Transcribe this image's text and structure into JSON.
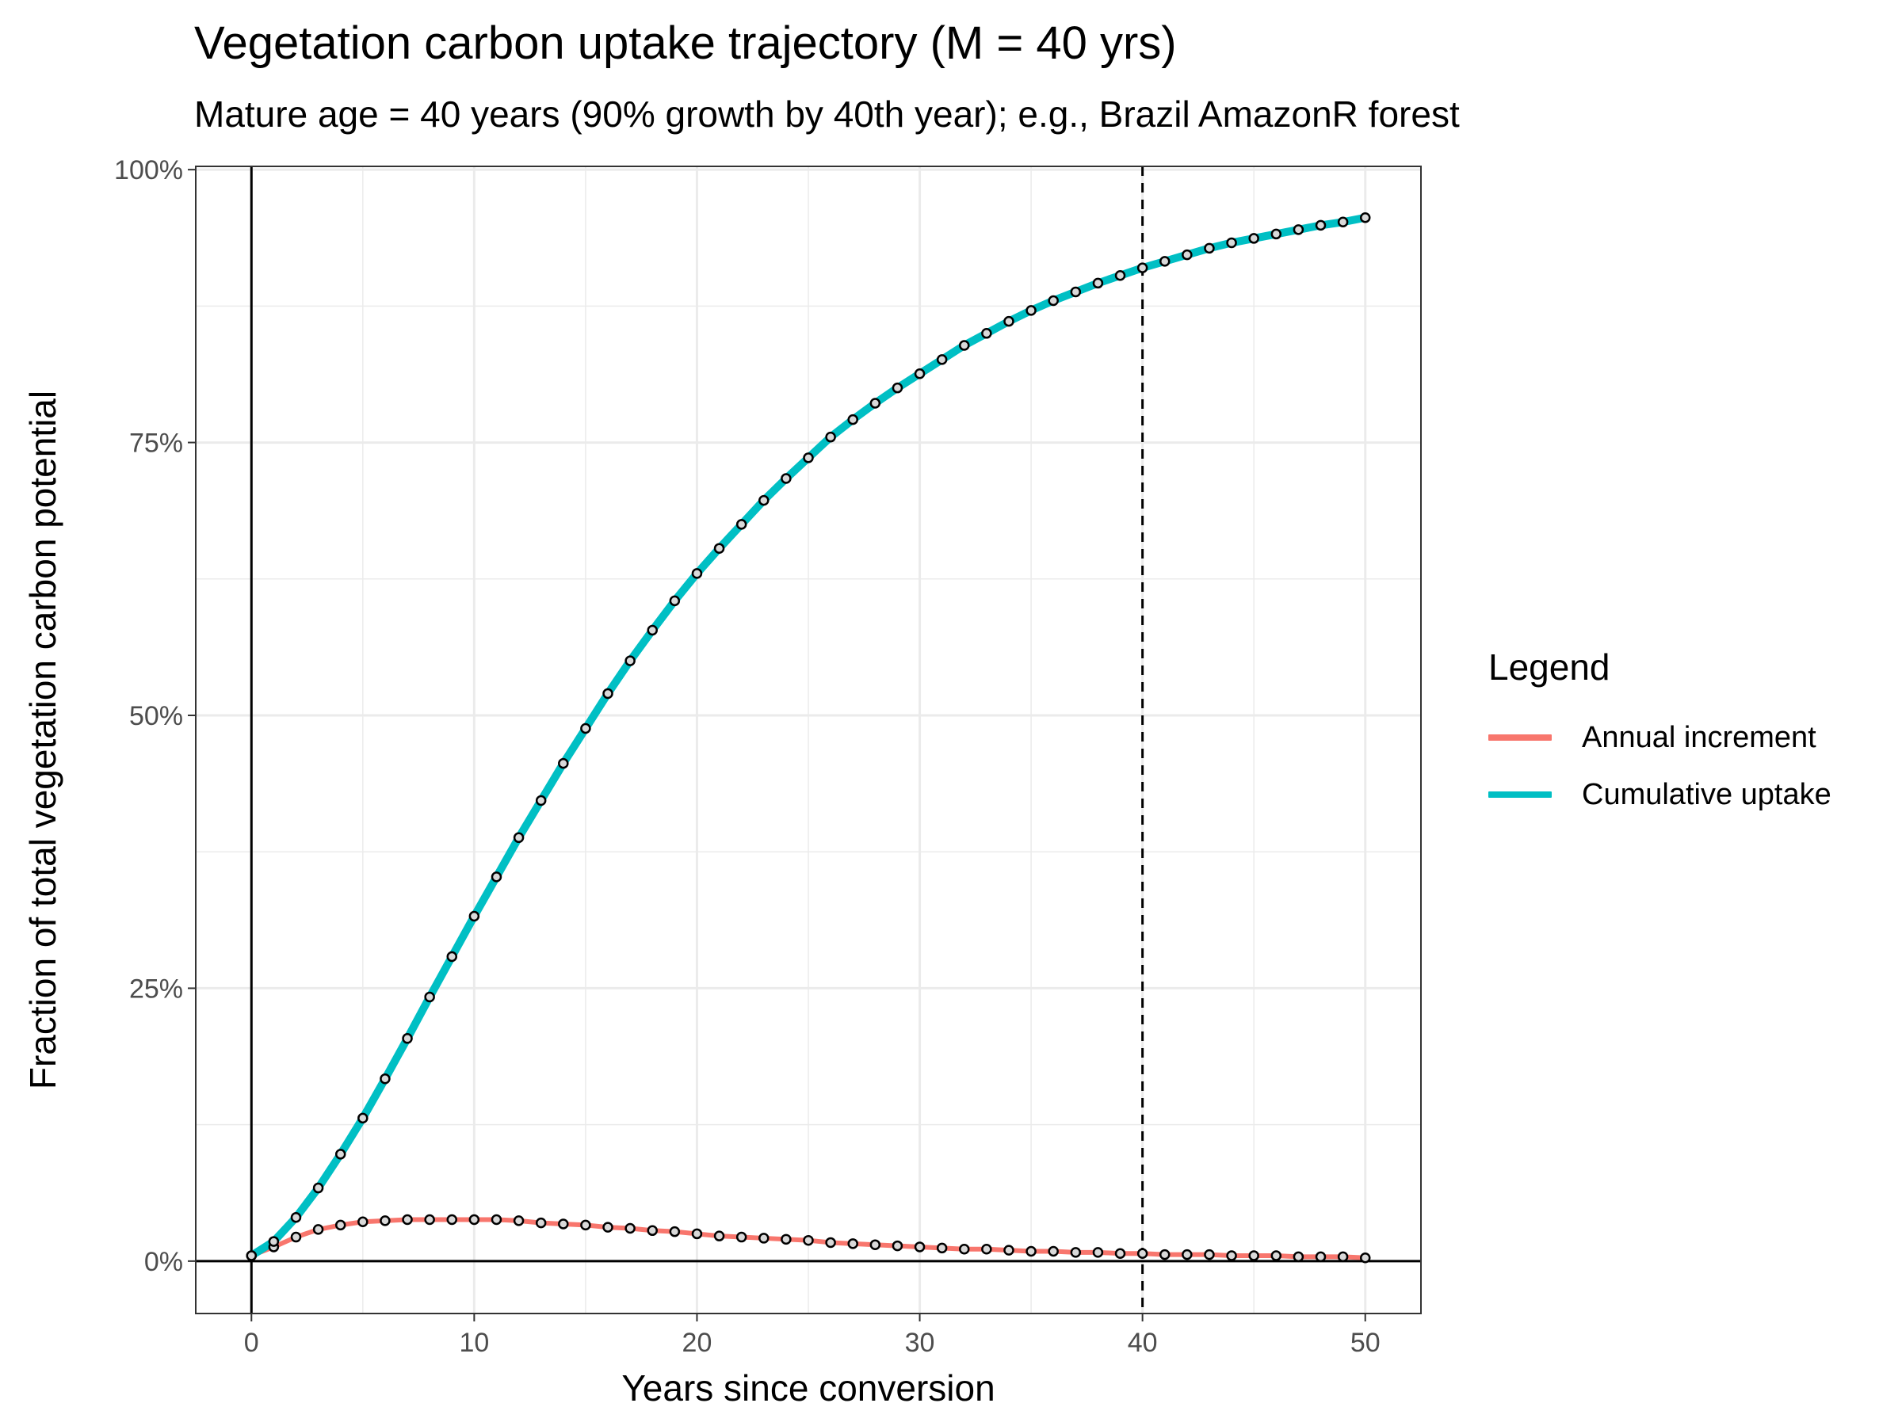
{
  "chart_data": {
    "type": "line",
    "title": "Vegetation carbon uptake trajectory (M = 40 yrs)",
    "subtitle": "Mature age = 40 years (90% growth by 40th year); e.g., Brazil AmazonR forest",
    "xlabel": "Years since conversion",
    "ylabel": "Fraction of total vegetation carbon potential",
    "xlim": [
      -2.5,
      52.5
    ],
    "ylim": [
      -0.048,
      1.003
    ],
    "x_ticks": [
      0,
      10,
      20,
      30,
      40,
      50
    ],
    "x_tick_labels": [
      "0",
      "10",
      "20",
      "30",
      "40",
      "50"
    ],
    "y_ticks": [
      0,
      0.25,
      0.5,
      0.75,
      1.0
    ],
    "y_tick_labels": [
      "0%",
      "25%",
      "50%",
      "75%",
      "100%"
    ],
    "grid": true,
    "reference_lines": {
      "vertical_dashed_x": 40,
      "vertical_solid_x": 0,
      "horizontal_solid_y": 0
    },
    "legend": {
      "title": "Legend",
      "placement": "right"
    },
    "x": [
      0,
      1,
      2,
      3,
      4,
      5,
      6,
      7,
      8,
      9,
      10,
      11,
      12,
      13,
      14,
      15,
      16,
      17,
      18,
      19,
      20,
      21,
      22,
      23,
      24,
      25,
      26,
      27,
      28,
      29,
      30,
      31,
      32,
      33,
      34,
      35,
      36,
      37,
      38,
      39,
      40,
      41,
      42,
      43,
      44,
      45,
      46,
      47,
      48,
      49,
      50
    ],
    "series": [
      {
        "name": "Annual increment",
        "color": "#F8766D",
        "values": [
          0.005,
          0.013,
          0.022,
          0.029,
          0.033,
          0.036,
          0.037,
          0.038,
          0.038,
          0.038,
          0.038,
          0.038,
          0.037,
          0.035,
          0.034,
          0.033,
          0.031,
          0.03,
          0.028,
          0.027,
          0.025,
          0.023,
          0.022,
          0.021,
          0.02,
          0.019,
          0.017,
          0.016,
          0.015,
          0.014,
          0.013,
          0.012,
          0.011,
          0.011,
          0.01,
          0.009,
          0.009,
          0.008,
          0.008,
          0.007,
          0.007,
          0.006,
          0.006,
          0.006,
          0.005,
          0.005,
          0.005,
          0.004,
          0.004,
          0.004,
          0.003
        ]
      },
      {
        "name": "Cumulative uptake",
        "color": "#00BFC4",
        "values": [
          0.005,
          0.018,
          0.04,
          0.067,
          0.098,
          0.131,
          0.167,
          0.204,
          0.242,
          0.279,
          0.316,
          0.352,
          0.388,
          0.422,
          0.456,
          0.488,
          0.52,
          0.55,
          0.578,
          0.605,
          0.63,
          0.653,
          0.675,
          0.697,
          0.717,
          0.736,
          0.755,
          0.771,
          0.786,
          0.8,
          0.813,
          0.826,
          0.839,
          0.85,
          0.861,
          0.871,
          0.88,
          0.888,
          0.896,
          0.903,
          0.91,
          0.916,
          0.922,
          0.928,
          0.933,
          0.937,
          0.941,
          0.945,
          0.949,
          0.952,
          0.956
        ]
      }
    ]
  }
}
